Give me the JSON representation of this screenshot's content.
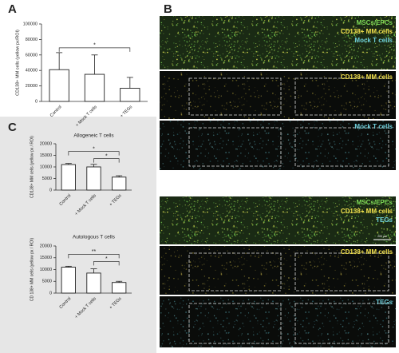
{
  "panels": {
    "a": "A",
    "b": "B",
    "c": "C"
  },
  "chart_data": [
    {
      "type": "bar",
      "ylabel": "CD138+ MM cells (yellow px/ROI)",
      "categories": [
        "Control",
        "+ Mock T cells",
        "+ TEGs"
      ],
      "values": [
        41000,
        35000,
        17000
      ],
      "errors": [
        22000,
        25000,
        14000
      ],
      "ylim": [
        0,
        100000
      ],
      "yticks": [
        0,
        20000,
        40000,
        60000,
        80000,
        100000
      ],
      "color": "#ffffff",
      "annotations": [
        {
          "label": "*",
          "between": [
            "Control",
            "+ TEGs"
          ]
        }
      ]
    },
    {
      "type": "bar",
      "title": "Allogeneic T cells",
      "ylabel": "CD138+ MM cells (yellow px / ROI)",
      "categories": [
        "Control",
        "+ Mock T cells",
        "+ TEGs"
      ],
      "values": [
        11000,
        10000,
        5600
      ],
      "errors": [
        500,
        1100,
        600
      ],
      "ylim": [
        0,
        20000
      ],
      "yticks": [
        0,
        5000,
        10000,
        15000,
        20000
      ],
      "color": "#ffffff",
      "annotations": [
        {
          "label": "*",
          "between": [
            "Control",
            "+ TEGs"
          ]
        },
        {
          "label": "*",
          "between": [
            "+ Mock T cells",
            "+ TEGs"
          ]
        }
      ]
    },
    {
      "type": "bar",
      "title": "Autologous T cells",
      "ylabel": "CD 138+ MM cells (yellow px / ROI)",
      "categories": [
        "Control",
        "+ Mock T cells",
        "+ TEGs"
      ],
      "values": [
        11000,
        8500,
        4500
      ],
      "errors": [
        400,
        1800,
        500
      ],
      "ylim": [
        0,
        20000
      ],
      "yticks": [
        0,
        5000,
        10000,
        15000,
        20000
      ],
      "color": "#ffffff",
      "annotations": [
        {
          "label": "**",
          "between": [
            "Control",
            "+ TEGs"
          ]
        },
        {
          "label": "*",
          "between": [
            "+ Mock T cells",
            "+ TEGs"
          ]
        }
      ]
    }
  ],
  "micrographs": [
    {
      "strips": [
        [
          "MSCs/EPCs",
          "CD138+ MM cells",
          "Mock T cells"
        ],
        [
          "CD138+ MM cells"
        ],
        [
          "Mock T cells"
        ]
      ]
    },
    {
      "strips": [
        [
          "MSCs/EPCs",
          "CD138+ MM cells",
          "TEGs"
        ],
        [
          "CD138+ MM cells"
        ],
        [
          "TEGs"
        ]
      ],
      "scale_bar": "200 µm"
    }
  ]
}
